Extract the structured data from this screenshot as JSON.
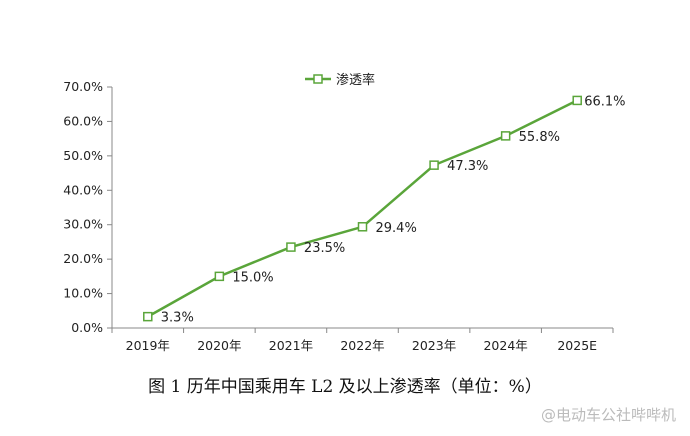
{
  "chart_data": {
    "type": "line",
    "title": "",
    "xlabel": "",
    "ylabel": "",
    "categories": [
      "2019年",
      "2020年",
      "2021年",
      "2022年",
      "2023年",
      "2024年",
      "2025E"
    ],
    "series": [
      {
        "name": "渗透率",
        "values": [
          3.3,
          15.0,
          23.5,
          29.4,
          47.3,
          55.8,
          66.1
        ],
        "color": "#5aa53a",
        "marker": "hollow-square"
      }
    ],
    "data_labels": [
      "3.3%",
      "15.0%",
      "23.5%",
      "29.4%",
      "47.3%",
      "55.8%",
      "66.1%"
    ],
    "ylim": [
      0,
      70
    ],
    "yticks": [
      0,
      10,
      20,
      30,
      40,
      50,
      60,
      70
    ],
    "ytick_labels": [
      "0.0%",
      "10.0%",
      "20.0%",
      "30.0%",
      "40.0%",
      "50.0%",
      "60.0%",
      "70.0%"
    ],
    "grid": false,
    "legend_position": "top-center"
  },
  "caption": "图 1  历年中国乘用车 L2 及以上渗透率（单位：%）",
  "watermark": "@电动车公社哔哔机"
}
